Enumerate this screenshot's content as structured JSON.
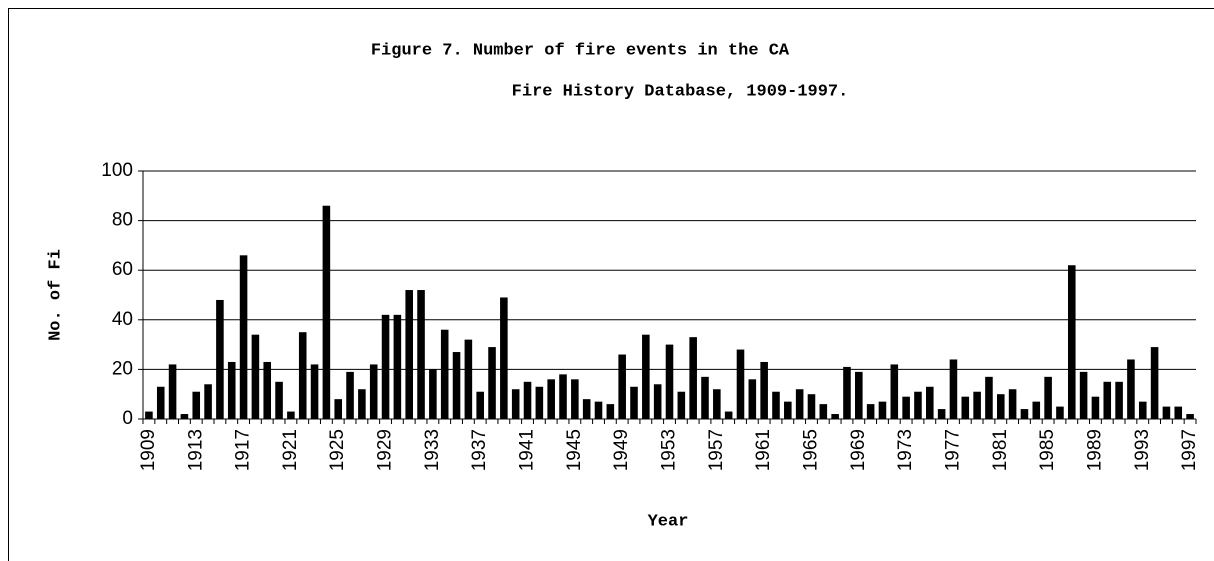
{
  "chart_data": {
    "type": "bar",
    "title_lines": [
      "Figure 7. Number of fire events in the CA",
      "Fire History Database, 1909-1997."
    ],
    "x_label": "Year",
    "y_label": "No. of Fi",
    "categories": [
      "1909",
      null,
      null,
      null,
      "1913",
      null,
      null,
      null,
      "1917",
      null,
      null,
      null,
      "1921",
      null,
      null,
      null,
      "1925",
      null,
      null,
      null,
      "1929",
      null,
      null,
      null,
      "1933",
      null,
      null,
      null,
      "1937",
      null,
      null,
      null,
      "1941",
      null,
      null,
      null,
      "1945",
      null,
      null,
      null,
      "1949",
      null,
      null,
      null,
      "1953",
      null,
      null,
      null,
      "1957",
      null,
      null,
      null,
      "1961",
      null,
      null,
      null,
      "1965",
      null,
      null,
      null,
      "1969",
      null,
      null,
      null,
      "1973",
      null,
      null,
      null,
      "1977",
      null,
      null,
      null,
      "1981",
      null,
      null,
      null,
      "1985",
      null,
      null,
      null,
      "1989",
      null,
      null,
      null,
      "1993",
      null,
      null,
      null,
      "1997"
    ],
    "values": [
      3,
      13,
      22,
      2,
      11,
      14,
      48,
      23,
      66,
      34,
      23,
      15,
      3,
      35,
      22,
      86,
      8,
      19,
      12,
      22,
      42,
      42,
      52,
      52,
      20,
      36,
      27,
      32,
      11,
      29,
      49,
      12,
      15,
      13,
      16,
      18,
      16,
      8,
      7,
      6,
      26,
      13,
      34,
      14,
      30,
      11,
      33,
      17,
      12,
      3,
      28,
      16,
      23,
      11,
      7,
      12,
      10,
      6,
      2,
      21,
      19,
      6,
      7,
      22,
      9,
      11,
      13,
      4,
      24,
      9,
      11,
      17,
      10,
      12,
      4,
      7,
      17,
      5,
      62,
      19,
      9,
      15,
      15,
      24,
      7,
      29,
      5,
      5,
      2
    ],
    "color": "#000000",
    "ylim": [
      0,
      100
    ],
    "yticks": [
      0,
      20,
      40,
      60,
      80,
      100
    ],
    "grid": true
  }
}
